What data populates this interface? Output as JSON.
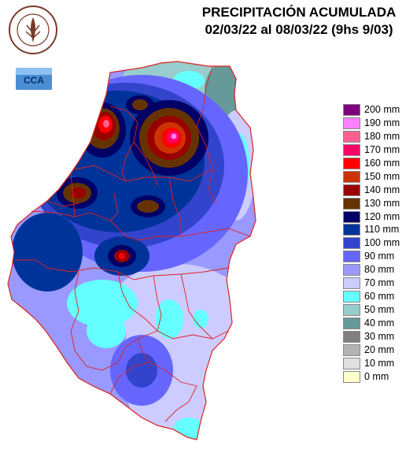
{
  "title": {
    "line1": "PRECIPITACIÓN ACUMULADA",
    "line2": "02/03/22 al 08/03/22 (9hs 9/03)"
  },
  "logos": {
    "seal_text": "BOLSA DE CEREALES DE ENTRE RIOS",
    "cca_text": "CCA"
  },
  "legend": [
    {
      "label": "200 mm",
      "color": "#800080"
    },
    {
      "label": "190 mm",
      "color": "#ff80ff"
    },
    {
      "label": "180 mm",
      "color": "#ff6090"
    },
    {
      "label": "170 mm",
      "color": "#ff0066"
    },
    {
      "label": "160 mm",
      "color": "#ff0000"
    },
    {
      "label": "150 mm",
      "color": "#cc3300"
    },
    {
      "label": "140 mm",
      "color": "#990000"
    },
    {
      "label": "130 mm",
      "color": "#663300"
    },
    {
      "label": "120 mm",
      "color": "#000066"
    },
    {
      "label": "110 mm",
      "color": "#003399"
    },
    {
      "label": "100 mm",
      "color": "#3344cc"
    },
    {
      "label": "90 mm",
      "color": "#6666ff"
    },
    {
      "label": "80 mm",
      "color": "#9999ff"
    },
    {
      "label": "70 mm",
      "color": "#ccccff"
    },
    {
      "label": "60 mm",
      "color": "#66ffff"
    },
    {
      "label": "50 mm",
      "color": "#99cccc"
    },
    {
      "label": "40 mm",
      "color": "#669999"
    },
    {
      "label": "30 mm",
      "color": "#808080"
    },
    {
      "label": "20 mm",
      "color": "#b3b3b3"
    },
    {
      "label": "10 mm",
      "color": "#e0e0e0"
    },
    {
      "label": "0 mm",
      "color": "#ffffcc"
    }
  ],
  "colors": {
    "border": "#dd2222"
  }
}
